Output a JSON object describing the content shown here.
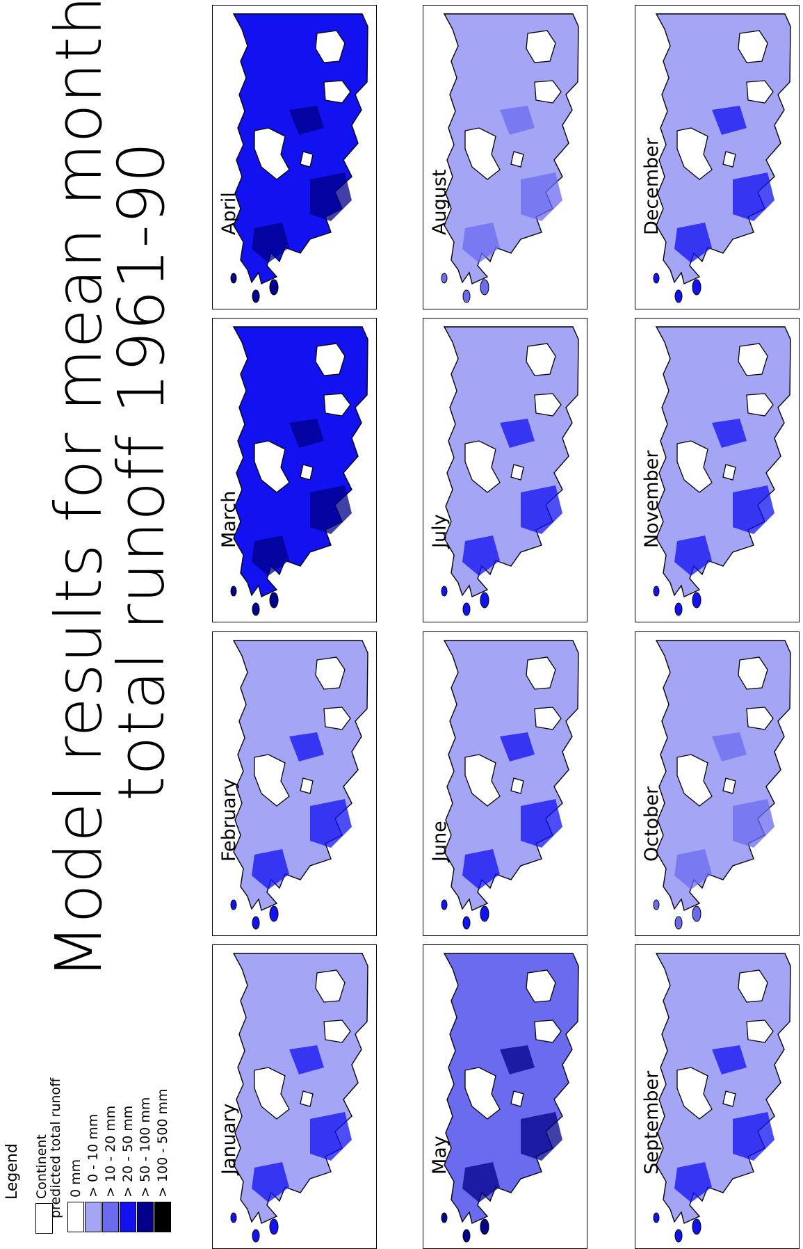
{
  "title": {
    "line1": "Model results for mean monthly",
    "line2": "total runoff 1961-90"
  },
  "legend": {
    "title": "Legend",
    "continent_label": "Continent",
    "runoff_heading": "predicted total runoff",
    "classes": [
      {
        "label": "0 mm",
        "color": "#ffffff"
      },
      {
        "label": "> 0 - 10 mm",
        "color": "#a5a5f5"
      },
      {
        "label": "> 10 - 20 mm",
        "color": "#6b6bf0"
      },
      {
        "label": "> 20 - 50 mm",
        "color": "#1212f0"
      },
      {
        "label": "> 50 - 100 mm",
        "color": "#00008a"
      },
      {
        "label": "> 100 - 500 mm",
        "color": "#000000"
      }
    ]
  },
  "months": [
    {
      "name": "January",
      "fill": "#a5a5f5",
      "accent": "#1212f0"
    },
    {
      "name": "February",
      "fill": "#a5a5f5",
      "accent": "#1212f0"
    },
    {
      "name": "March",
      "fill": "#1212f0",
      "accent": "#00008a"
    },
    {
      "name": "April",
      "fill": "#1212f0",
      "accent": "#00008a"
    },
    {
      "name": "May",
      "fill": "#6b6bf0",
      "accent": "#00008a"
    },
    {
      "name": "June",
      "fill": "#a5a5f5",
      "accent": "#1212f0"
    },
    {
      "name": "July",
      "fill": "#a5a5f5",
      "accent": "#1212f0"
    },
    {
      "name": "August",
      "fill": "#a5a5f5",
      "accent": "#6b6bf0"
    },
    {
      "name": "September",
      "fill": "#a5a5f5",
      "accent": "#1212f0"
    },
    {
      "name": "October",
      "fill": "#a5a5f5",
      "accent": "#6b6bf0"
    },
    {
      "name": "November",
      "fill": "#a5a5f5",
      "accent": "#1212f0"
    },
    {
      "name": "December",
      "fill": "#a5a5f5",
      "accent": "#1212f0"
    }
  ]
}
